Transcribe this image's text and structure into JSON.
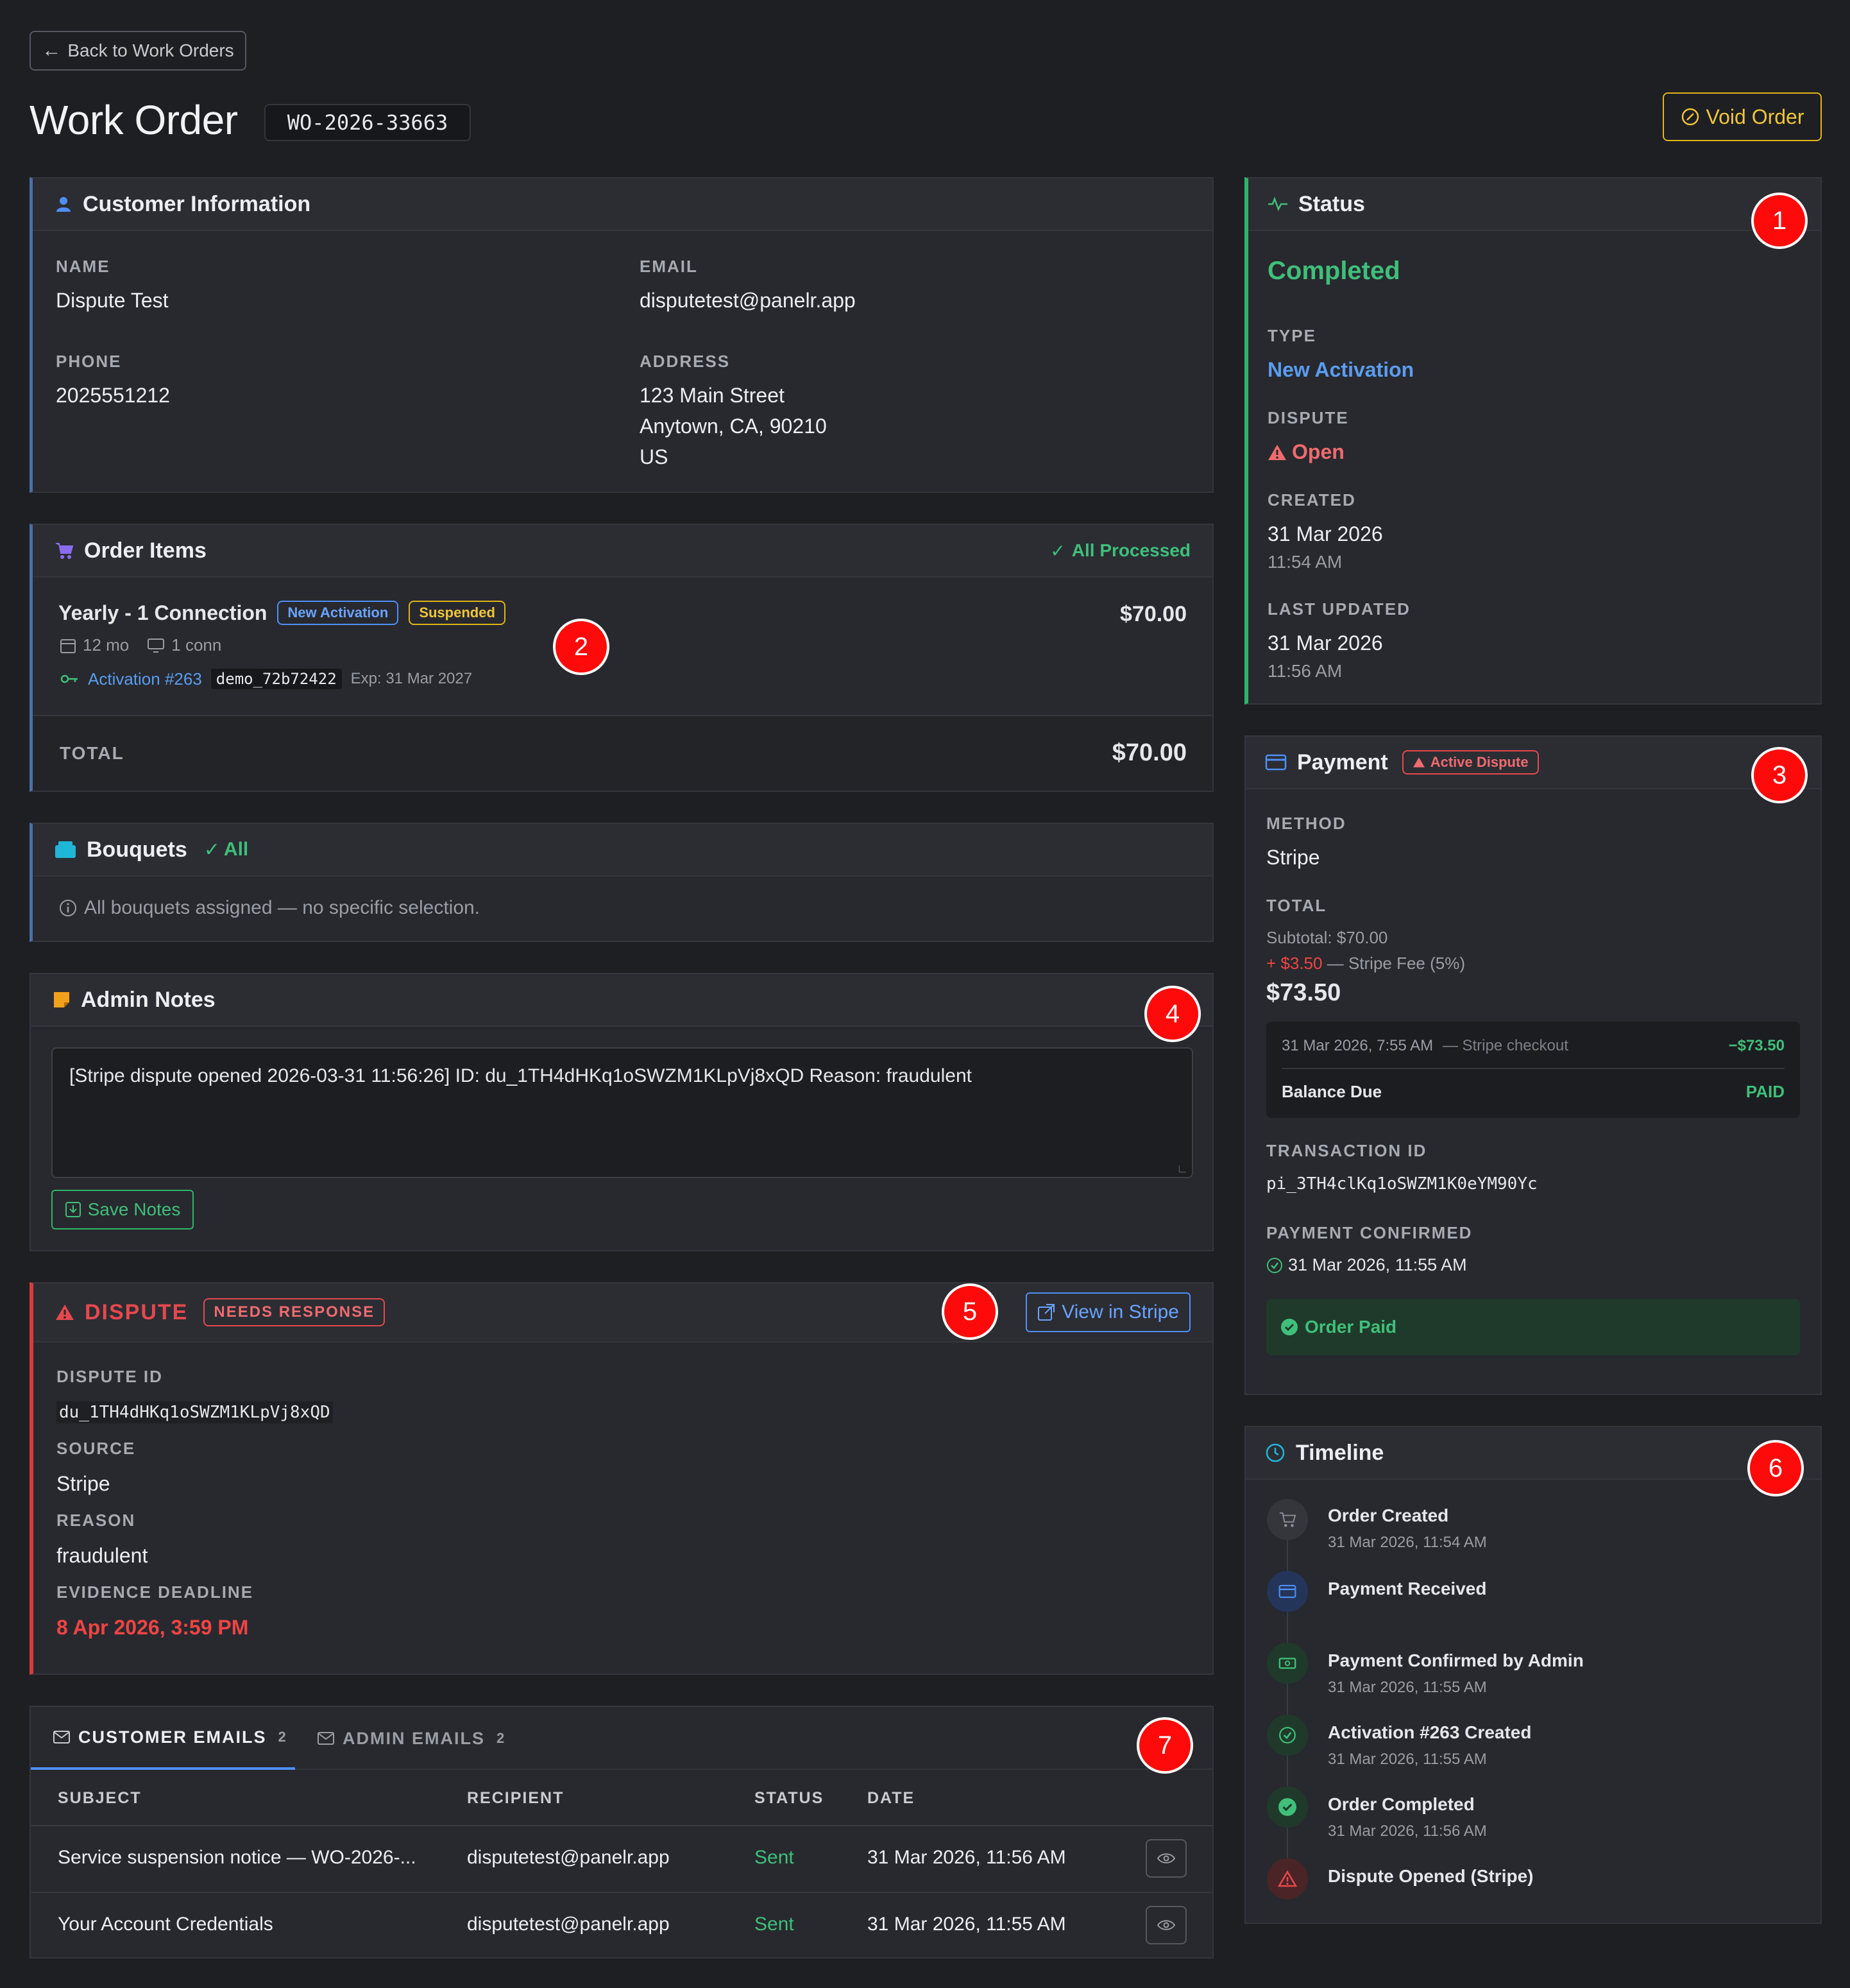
{
  "header": {
    "back_label": "Back to Work Orders",
    "title": "Work Order",
    "order_id": "WO-2026-33663",
    "void_label": "Void Order"
  },
  "customer": {
    "heading": "Customer Information",
    "name_label": "NAME",
    "name": "Dispute Test",
    "email_label": "EMAIL",
    "email": "disputetest@panelr.app",
    "phone_label": "PHONE",
    "phone": "2025551212",
    "address_label": "ADDRESS",
    "address_line1": "123 Main Street",
    "address_line2": "Anytown, CA, 90210",
    "address_line3": "US"
  },
  "order_items": {
    "heading": "Order Items",
    "status": "All Processed",
    "item": {
      "name": "Yearly - 1 Connection",
      "badge_type": "New Activation",
      "badge_state": "Suspended",
      "duration": "12 mo",
      "connections": "1 conn",
      "activation_link": "Activation #263",
      "activation_code": "demo_72b72422",
      "expiry": "Exp: 31 Mar 2027",
      "price": "$70.00"
    },
    "total_label": "TOTAL",
    "total": "$70.00"
  },
  "bouquets": {
    "heading": "Bouquets",
    "all_label": "All",
    "info": "All bouquets assigned — no specific selection."
  },
  "admin_notes": {
    "heading": "Admin Notes",
    "text": "[Stripe dispute opened 2026-03-31 11:56:26] ID: du_1TH4dHKq1oSWZM1KLpVj8xQD Reason: fraudulent",
    "save_label": "Save Notes"
  },
  "dispute": {
    "heading": "DISPUTE",
    "badge": "NEEDS RESPONSE",
    "view_label": "View in Stripe",
    "id_label": "DISPUTE ID",
    "id": "du_1TH4dHKq1oSWZM1KLpVj8xQD",
    "source_label": "SOURCE",
    "source": "Stripe",
    "reason_label": "REASON",
    "reason": "fraudulent",
    "deadline_label": "EVIDENCE DEADLINE",
    "deadline": "8 Apr 2026, 3:59 PM"
  },
  "emails": {
    "tab_customer": "CUSTOMER EMAILS",
    "tab_customer_count": "2",
    "tab_admin": "ADMIN EMAILS",
    "tab_admin_count": "2",
    "columns": {
      "subject": "SUBJECT",
      "recipient": "RECIPIENT",
      "status": "STATUS",
      "date": "DATE"
    },
    "rows": [
      {
        "subject": "Service suspension notice — WO-2026-...",
        "recipient": "disputetest@panelr.app",
        "status": "Sent",
        "date": "31 Mar 2026, 11:56 AM"
      },
      {
        "subject": "Your Account Credentials",
        "recipient": "disputetest@panelr.app",
        "status": "Sent",
        "date": "31 Mar 2026, 11:55 AM"
      }
    ]
  },
  "status_panel": {
    "heading": "Status",
    "state": "Completed",
    "type_label": "TYPE",
    "type": "New Activation",
    "dispute_label": "DISPUTE",
    "dispute": "Open",
    "created_label": "CREATED",
    "created_date": "31 Mar 2026",
    "created_time": "11:54 AM",
    "updated_label": "LAST UPDATED",
    "updated_date": "31 Mar 2026",
    "updated_time": "11:56 AM"
  },
  "payment": {
    "heading": "Payment",
    "badge": "Active Dispute",
    "method_label": "METHOD",
    "method": "Stripe",
    "total_label": "TOTAL",
    "subtotal": "Subtotal: $70.00",
    "fee_amount": "+ $3.50",
    "fee_desc": "— Stripe Fee (5%)",
    "total": "$73.50",
    "txn_date": "31 Mar 2026, 7:55 AM",
    "txn_desc": "— Stripe checkout",
    "txn_amount": "−$73.50",
    "balance_label": "Balance Due",
    "balance_value": "PAID",
    "txn_id_label": "TRANSACTION ID",
    "txn_id": "pi_3TH4clKq1oSWZM1K0eYM90Yc",
    "confirmed_label": "PAYMENT CONFIRMED",
    "confirmed": "31 Mar 2026, 11:55 AM",
    "paid_banner": "Order Paid"
  },
  "timeline": {
    "heading": "Timeline",
    "events": [
      {
        "title": "Order Created",
        "time": "31 Mar 2026, 11:54 AM",
        "icon": "cart-icon"
      },
      {
        "title": "Payment Received",
        "time": "",
        "icon": "card-icon"
      },
      {
        "title": "Payment Confirmed by Admin",
        "time": "31 Mar 2026, 11:55 AM",
        "icon": "cash-icon"
      },
      {
        "title": "Activation #263 Created",
        "time": "31 Mar 2026, 11:55 AM",
        "icon": "check-circle-icon"
      },
      {
        "title": "Order Completed",
        "time": "31 Mar 2026, 11:56 AM",
        "icon": "check-filled-icon"
      },
      {
        "title": "Dispute Opened (Stripe)",
        "time": "",
        "icon": "warning-icon"
      }
    ]
  },
  "markers": [
    "1",
    "2",
    "3",
    "4",
    "5",
    "6",
    "7"
  ],
  "colors": {
    "background": "#1e1f22",
    "panel": "#27292e",
    "green": "#2fb36a",
    "blue": "#5b9cf0",
    "red": "#e5484d",
    "amber": "#f0c53a"
  }
}
